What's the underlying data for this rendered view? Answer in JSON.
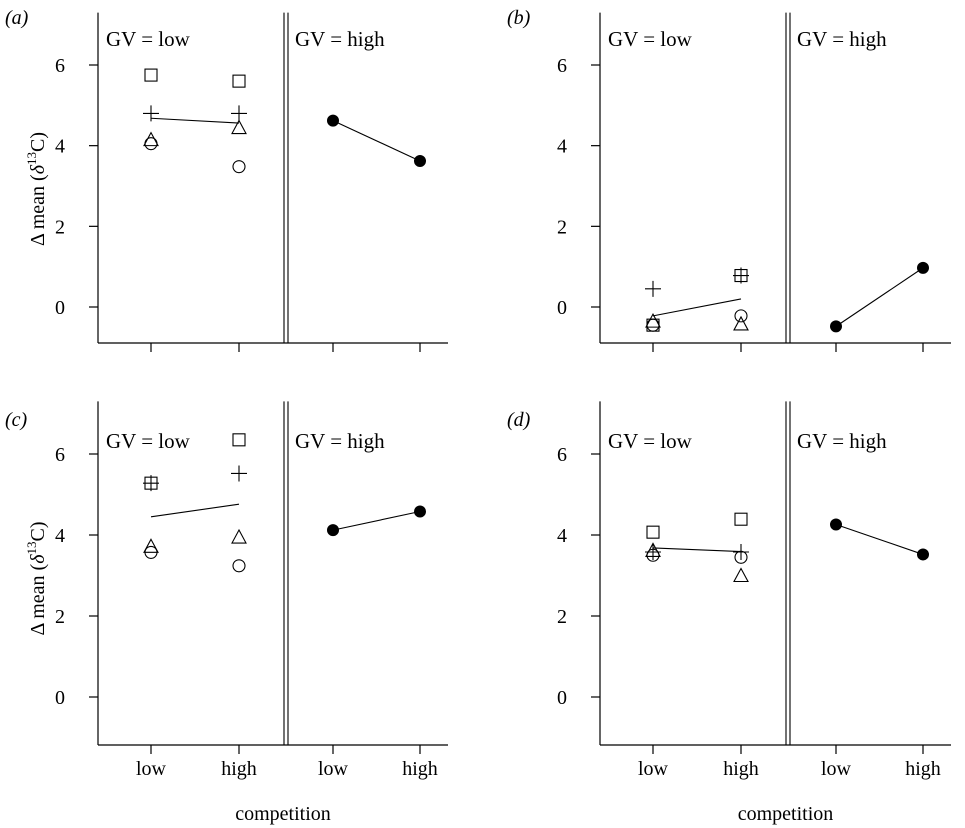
{
  "figure": {
    "x_axis_title": "competition",
    "y_axis_title_prefix": "Δ mean (",
    "y_axis_title_delta": "δ",
    "y_axis_title_sup": "13",
    "y_axis_title_suffix": "C)"
  },
  "chart_data": [
    {
      "type": "scatter",
      "panel_label": "(a)",
      "group_labels": [
        "GV = low",
        "GV = high"
      ],
      "categories": [
        "low",
        "high",
        "low",
        "high"
      ],
      "ylim": [
        -0.9,
        7.3
      ],
      "yticks": [
        0,
        2,
        4,
        6
      ],
      "grid": false,
      "low_gv_series": [
        {
          "marker": "square",
          "values": [
            5.75,
            5.6
          ]
        },
        {
          "marker": "plus",
          "values": [
            4.8,
            4.8
          ]
        },
        {
          "marker": "triangle",
          "values": [
            4.15,
            4.45
          ]
        },
        {
          "marker": "circle",
          "values": [
            4.05,
            3.48
          ]
        }
      ],
      "low_gv_mean": [
        4.68,
        4.56
      ],
      "high_gv": [
        4.62,
        3.62
      ]
    },
    {
      "type": "scatter",
      "panel_label": "(b)",
      "group_labels": [
        "GV = low",
        "GV = high"
      ],
      "categories": [
        "low",
        "high",
        "low",
        "high"
      ],
      "ylim": [
        -0.9,
        7.3
      ],
      "yticks": [
        0,
        2,
        4,
        6
      ],
      "grid": false,
      "low_gv_series": [
        {
          "marker": "square",
          "values": [
            -0.45,
            0.78
          ]
        },
        {
          "marker": "plus",
          "values": [
            0.45,
            0.78
          ]
        },
        {
          "marker": "triangle",
          "values": [
            -0.35,
            -0.42
          ]
        },
        {
          "marker": "circle",
          "values": [
            -0.45,
            -0.22
          ]
        }
      ],
      "low_gv_mean": [
        -0.22,
        0.2
      ],
      "high_gv": [
        -0.48,
        0.97
      ]
    },
    {
      "type": "scatter",
      "panel_label": "(c)",
      "group_labels": [
        "GV = low",
        "GV = high"
      ],
      "categories": [
        "low",
        "high",
        "low",
        "high"
      ],
      "ylim": [
        -0.9,
        7.3
      ],
      "yticks": [
        0,
        2,
        4,
        6
      ],
      "grid": false,
      "low_gv_series": [
        {
          "marker": "square",
          "values": [
            5.28,
            6.35
          ]
        },
        {
          "marker": "plus",
          "values": [
            5.28,
            5.52
          ]
        },
        {
          "marker": "triangle",
          "values": [
            3.72,
            3.95
          ]
        },
        {
          "marker": "circle",
          "values": [
            3.57,
            3.24
          ]
        }
      ],
      "low_gv_mean": [
        4.45,
        4.76
      ],
      "high_gv": [
        4.12,
        4.58
      ]
    },
    {
      "type": "scatter",
      "panel_label": "(d)",
      "group_labels": [
        "GV = low",
        "GV = high"
      ],
      "categories": [
        "low",
        "high",
        "low",
        "high"
      ],
      "ylim": [
        -0.9,
        7.3
      ],
      "yticks": [
        0,
        2,
        4,
        6
      ],
      "grid": false,
      "low_gv_series": [
        {
          "marker": "square",
          "values": [
            4.07,
            4.39
          ]
        },
        {
          "marker": "plus",
          "values": [
            3.58,
            3.58
          ]
        },
        {
          "marker": "triangle",
          "values": [
            3.62,
            3.0
          ]
        },
        {
          "marker": "circle",
          "values": [
            3.5,
            3.45
          ]
        }
      ],
      "low_gv_mean": [
        3.68,
        3.59
      ],
      "high_gv": [
        4.26,
        3.52
      ]
    }
  ]
}
